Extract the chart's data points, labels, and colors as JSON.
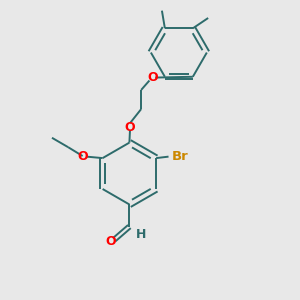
{
  "bg_color": "#e8e8e8",
  "bond_color": "#2d6b6b",
  "oxygen_color": "#ff0000",
  "bromine_color": "#cc8800",
  "lw": 1.4,
  "dbo": 0.08,
  "xlim": [
    0,
    10
  ],
  "ylim": [
    0,
    10
  ]
}
